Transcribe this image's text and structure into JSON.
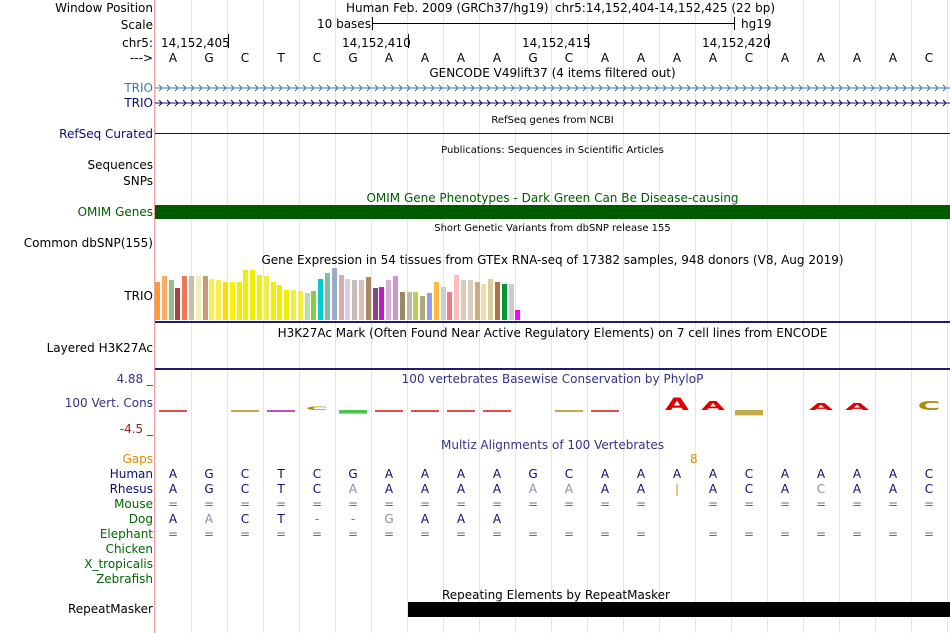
{
  "header": {
    "window_position_label": "Window Position",
    "scale_label": "Scale",
    "chrom_label": "chr5:",
    "strand_label": "--->",
    "assembly_text": "Human Feb. 2009 (GRCh37/hg19)",
    "position_text": "chr5:14,152,404-14,152,425 (22 bp)",
    "scale_bases": "10 bases",
    "scale_db": "hg19",
    "ruler_ticks": [
      "14,152,405",
      "14,152,410",
      "14,152,415",
      "14,152,420"
    ]
  },
  "sequence": [
    "A",
    "G",
    "C",
    "T",
    "C",
    "G",
    "A",
    "A",
    "A",
    "A",
    "G",
    "C",
    "A",
    "A",
    "A",
    "A",
    "C",
    "A",
    "A",
    "A",
    "A",
    "C"
  ],
  "tracks": {
    "gencode": {
      "title": "GENCODE V49lift37 (4 items filtered out)",
      "items": [
        "TRIO",
        "TRIO"
      ],
      "color": "#3778b5"
    },
    "refseq": {
      "label": "RefSeq Curated",
      "title": "RefSeq genes from NCBI",
      "color": "#0c0c78"
    },
    "pubs": {
      "label": "Sequences",
      "title": "Publications: Sequences in Scientific Articles"
    },
    "snps": {
      "label": "SNPs"
    },
    "omim": {
      "label": "OMIM Genes",
      "title": "OMIM Gene Phenotypes - Dark Green Can Be Disease-causing",
      "color": "#005a00"
    },
    "dbsnp": {
      "label": "Common dbSNP(155)",
      "title": "Short Genetic Variants from dbSNP release 155"
    },
    "gtex": {
      "label": "TRIO",
      "title": "Gene Expression in 54 tissues from GTEx RNA-seq of 17382 samples, 948 donors (V8, Aug 2019)",
      "values": [
        0.74,
        0.84,
        0.77,
        0.61,
        0.85,
        0.84,
        0.85,
        0.84,
        0.78,
        0.76,
        0.73,
        0.73,
        0.73,
        0.96,
        0.96,
        0.87,
        0.85,
        0.73,
        0.67,
        0.58,
        0.57,
        0.55,
        0.52,
        0.55,
        0.79,
        0.91,
        1.0,
        0.87,
        0.79,
        0.77,
        0.77,
        0.83,
        0.61,
        0.63,
        0.77,
        0.85,
        0.53,
        0.54,
        0.53,
        0.46,
        0.52,
        0.74,
        0.64,
        0.53,
        0.86,
        0.77,
        0.76,
        0.73,
        0.7,
        0.78,
        0.74,
        0.7,
        0.7,
        0.2
      ],
      "colors": [
        "#ff9933",
        "#ffaa66",
        "#99bb88",
        "#aa4444",
        "#ee7755",
        "#ccbbaa",
        "#eeeebb",
        "#cc9977",
        "#ffee44",
        "#ffee44",
        "#ffdd00",
        "#ffee00",
        "#eeee00",
        "#eeee00",
        "#eeee00",
        "#eeee00",
        "#eeee44",
        "#eeee00",
        "#eeee00",
        "#eeee00",
        "#eeee44",
        "#eeee44",
        "#bbddaa",
        "#88cc44",
        "#00cccc",
        "#88bb99",
        "#99aacc",
        "#ddaaaa",
        "#ddccdd",
        "#ccbbbb",
        "#ddbbbb",
        "#aa8866",
        "#884488",
        "#bb22bb",
        "#ddaadd",
        "#cc99cc",
        "#998866",
        "#bbbbaa",
        "#bbcc55",
        "#aaaa77",
        "#9999ee",
        "#ffbb44",
        "#cccccc",
        "#ee7788",
        "#ffbbbb",
        "#ddccbb",
        "#ddccbb",
        "#ccaa88",
        "#eeddaa",
        "#ddcc99",
        "#aa7744",
        "#009933",
        "#cccccc",
        "#ff00ff"
      ]
    },
    "h3k27ac": {
      "label": "Layered H3K27Ac",
      "title": "H3K27Ac Mark (Often Found Near Active Regulatory Elements) on 7 cell lines from ENCODE"
    },
    "cons": {
      "label": "100 Vert. Cons",
      "title": "100 vertebrates Basewise Conservation by PhyloP",
      "max": "4.88 _",
      "min": "-4.5 _",
      "scores": [
        -0.3,
        0,
        -0.2,
        -0.05,
        0.5,
        -1.2,
        -0.6,
        -0.2,
        -0.15,
        -0.25,
        0,
        -0.2,
        -0.2,
        0,
        2.0,
        1.5,
        -1.8,
        0,
        1.2,
        1.2,
        0,
        1.5
      ]
    },
    "multiz": {
      "title": "Multiz Alignments of 100 Vertebrates",
      "gaps_label": "Gaps",
      "gap_count": "8",
      "species": [
        "Human",
        "Rhesus",
        "Mouse",
        "Dog",
        "Elephant",
        "Chicken",
        "X_tropicalis",
        "Zebrafish"
      ],
      "rows": {
        "Rhesus": [
          "A",
          "G",
          "C",
          "T",
          "C",
          "A",
          "A",
          "A",
          "A",
          "A",
          "A",
          "A",
          "A",
          "A",
          "|",
          "A",
          "C",
          "A",
          "C",
          "A",
          "A",
          "C"
        ],
        "Mouse": [
          "=",
          "=",
          "=",
          "=",
          "=",
          "=",
          "=",
          "=",
          "=",
          "=",
          "=",
          "=",
          "=",
          "=",
          "",
          "=",
          "=",
          "=",
          "=",
          "=",
          "=",
          "="
        ],
        "Dog": [
          "A",
          "A",
          "C",
          "T",
          "-",
          "-",
          "G",
          "A",
          "A",
          "A",
          "",
          "",
          "",
          "",
          "",
          "",
          "",
          "",
          "",
          "",
          "",
          ""
        ],
        "Elephant": [
          "=",
          "=",
          "=",
          "=",
          "=",
          "=",
          "=",
          "=",
          "=",
          "=",
          "=",
          "=",
          "=",
          "=",
          "",
          "=",
          "=",
          "=",
          "=",
          "=",
          "=",
          "="
        ]
      }
    },
    "repeat": {
      "label": "RepeatMasker",
      "title": "Repeating Elements by RepeatMasker"
    }
  }
}
